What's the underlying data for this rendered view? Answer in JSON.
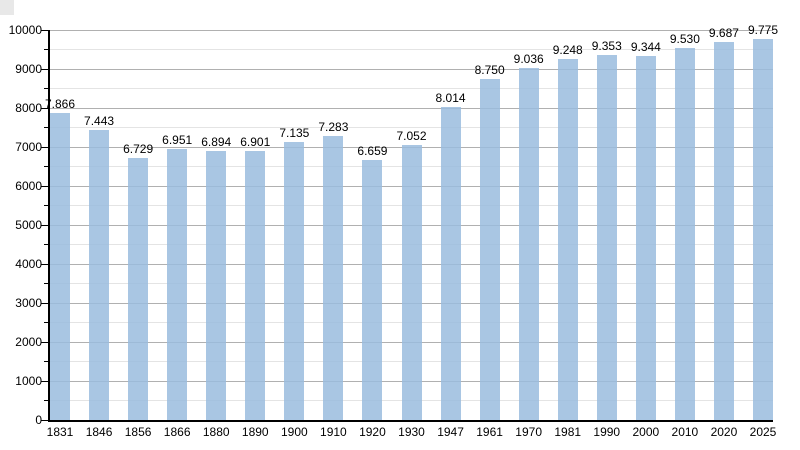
{
  "chart_data": {
    "type": "bar",
    "title": "",
    "xlabel": "",
    "ylabel": "",
    "categories": [
      "1831",
      "1846",
      "1856",
      "1866",
      "1880",
      "1890",
      "1900",
      "1910",
      "1920",
      "1930",
      "1947",
      "1961",
      "1970",
      "1981",
      "1990",
      "2000",
      "2010",
      "2020",
      "2025"
    ],
    "values": [
      7866,
      7443,
      6729,
      6951,
      6894,
      6901,
      7135,
      7283,
      6659,
      7052,
      8014,
      8750,
      9036,
      9248,
      9353,
      9344,
      9530,
      9687,
      9775
    ],
    "value_labels": [
      "7.866",
      "7.443",
      "6.729",
      "6.951",
      "6.894",
      "6.901",
      "7.135",
      "7.283",
      "6.659",
      "7.052",
      "8.014",
      "8.750",
      "9.036",
      "9.248",
      "9.353",
      "9.344",
      "9.530",
      "9.687",
      "9.775"
    ],
    "ylim": [
      0,
      10000
    ],
    "y_major_tick_step": 1000,
    "y_minor_tick_step": 500,
    "y_tick_labels": [
      "0",
      "1000",
      "2000",
      "3000",
      "4000",
      "5000",
      "6000",
      "7000",
      "8000",
      "9000",
      "10000"
    ],
    "grid": "horizontal, major and minor lines",
    "legend": "none"
  },
  "colors": {
    "bar_fill": "rgba(154,188,222,0.85)",
    "grid_major": "#b0b0b0",
    "grid_minor": "#e4e4e4",
    "axis": "#000000",
    "text": "#000000",
    "background": "#ffffff",
    "corner_artifact": "#e8e8e8"
  }
}
